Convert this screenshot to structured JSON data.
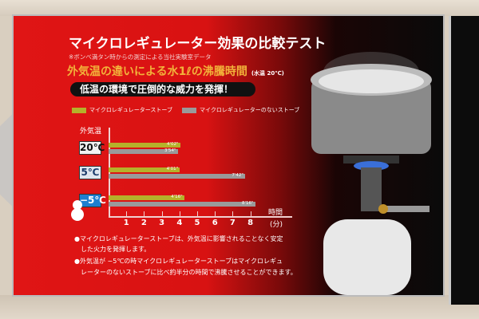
{
  "header": {
    "title": "マイクロレギュレーター効果の比較テスト",
    "note": "※ボンベ満タン時からの測定による当社実験室データ",
    "subtitle": "外気温の違いによる水1ℓの沸騰時間",
    "subtitle_note": "(水温 20℃)",
    "banner": "低温の環境で圧倒的な威力を発揮！"
  },
  "colors": {
    "panel": "#e01515",
    "series_regulator": "#b5b12a",
    "series_no_regulator": "#9a9a9a",
    "cold_label": "#1e7fd0"
  },
  "chart_data": {
    "type": "bar",
    "orientation": "horizontal",
    "ylabel": "外気温",
    "xlabel": "時間",
    "xunit": "(分)",
    "xlim": [
      0,
      8
    ],
    "xticks": [
      "1",
      "2",
      "3",
      "4",
      "5",
      "6",
      "7",
      "8"
    ],
    "categories": [
      "20℃",
      "5℃",
      "−5℃"
    ],
    "legend_placement": "top",
    "series": [
      {
        "name": "マイクロレギュレーターストーブ",
        "values": [
          4.033,
          4.017,
          4.267
        ],
        "labels": [
          "4'02\"",
          "4'01\"",
          "4'16\""
        ]
      },
      {
        "name": "マイクロレギュレーターのないストーブ",
        "values": [
          3.9,
          7.7,
          8.267
        ],
        "labels": [
          "3'54\"",
          "7'42\"",
          "8'16\""
        ]
      }
    ]
  },
  "bullets": [
    "●マイクロレギュレーターストーブは、外気温に影響されることなく安定",
    "　した火力を発揮します。",
    "●外気温が −5℃の時マイクロレギュレーターストーブはマイクロレギュ",
    "　レーターのないストーブに比べ約半分の時間で沸騰させることができます。"
  ]
}
